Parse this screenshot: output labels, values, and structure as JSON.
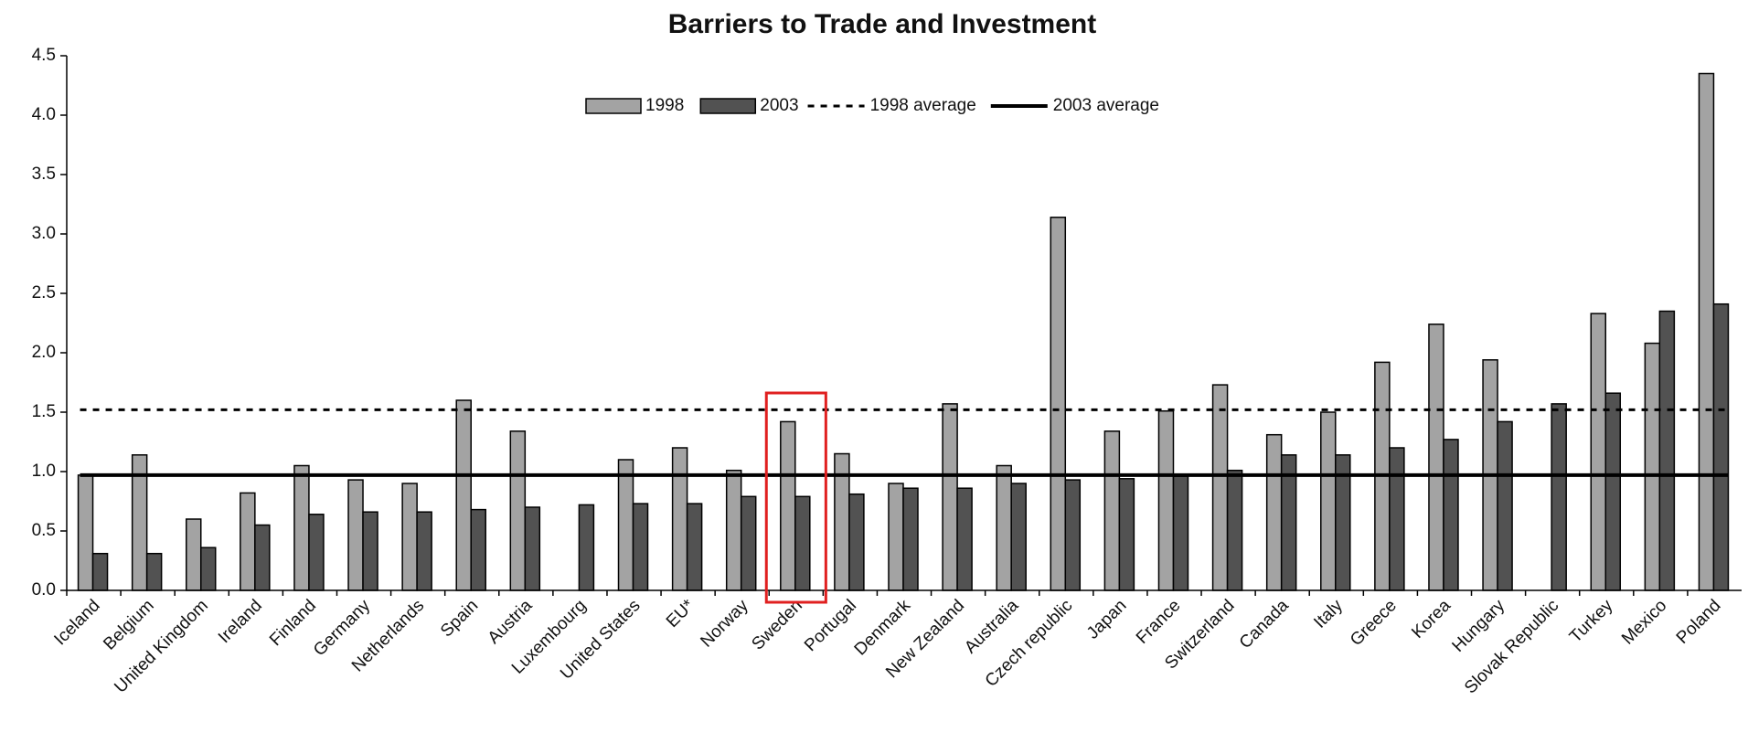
{
  "chart_data": {
    "type": "bar",
    "title": "Barriers to Trade and Investment",
    "categories": [
      "Iceland",
      "Belgium",
      "United Kingdom",
      "Ireland",
      "Finland",
      "Germany",
      "Netherlands",
      "Spain",
      "Austria",
      "Luxembourg",
      "United States",
      "EU*",
      "Norway",
      "Sweden",
      "Portugal",
      "Denmark",
      "New Zealand",
      "Australia",
      "Czech republic",
      "Japan",
      "France",
      "Switzerland",
      "Canada",
      "Italy",
      "Greece",
      "Korea",
      "Hungary",
      "Slovak Republic",
      "Turkey",
      "Mexico",
      "Poland"
    ],
    "series": [
      {
        "name": "1998",
        "color": "#a3a3a3",
        "values": [
          0.97,
          1.14,
          0.6,
          0.82,
          1.05,
          0.93,
          0.9,
          1.6,
          1.34,
          null,
          1.1,
          1.2,
          1.01,
          1.42,
          1.15,
          0.9,
          1.57,
          1.05,
          3.14,
          1.34,
          1.51,
          1.73,
          1.31,
          1.5,
          1.92,
          2.24,
          1.94,
          null,
          2.33,
          2.08,
          4.35
        ]
      },
      {
        "name": "2003",
        "color": "#525252",
        "values": [
          0.31,
          0.31,
          0.36,
          0.55,
          0.64,
          0.66,
          0.66,
          0.68,
          0.7,
          0.72,
          0.73,
          0.73,
          0.79,
          0.79,
          0.81,
          0.86,
          0.86,
          0.9,
          0.93,
          0.94,
          0.96,
          1.01,
          1.14,
          1.14,
          1.2,
          1.27,
          1.42,
          1.57,
          1.66,
          2.35,
          2.41
        ]
      }
    ],
    "reference_lines": [
      {
        "name": "1998 average",
        "value": 1.52,
        "style": "dashed",
        "color": "#000000"
      },
      {
        "name": "2003 average",
        "value": 0.97,
        "style": "solid",
        "color": "#000000"
      }
    ],
    "highlight": 13,
    "highlight_color": "#e02020",
    "ylim": [
      0,
      4.5
    ],
    "yticks": [
      {
        "value": 0,
        "label": "0.0"
      },
      0.5,
      {
        "value": 1,
        "label": "1.0"
      },
      1.5,
      {
        "value": 2,
        "label": "2.0"
      },
      2.5,
      {
        "value": 3,
        "label": "3.0"
      },
      3.5,
      {
        "value": 4,
        "label": "4.0"
      },
      4.5
    ],
    "grid": false
  }
}
